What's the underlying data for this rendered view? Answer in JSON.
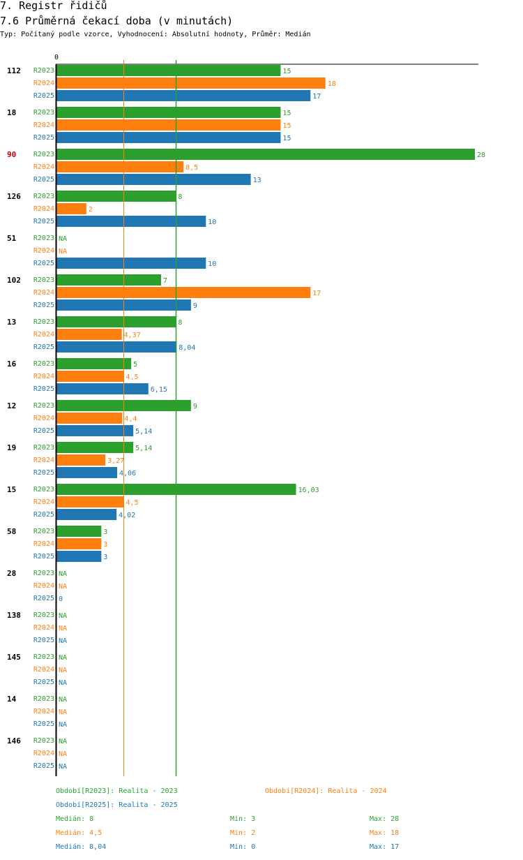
{
  "header": {
    "title": "7. Registr řidičů",
    "subtitle": "7.6 Průměrná čekací doba (v minutách)",
    "meta": "Typ: Počítaný podle vzorce, Vyhodnocení: Absolutní hodnoty, Průměr: Medián"
  },
  "colors": {
    "R2023": "#2ca02c",
    "R2024": "#ff7f0e",
    "R2025": "#1f77b4",
    "highlight": "#cc0000"
  },
  "chart_data": {
    "type": "bar",
    "orientation": "horizontal",
    "title": "7.6 Průměrná čekací doba (v minutách)",
    "xlim": [
      0,
      28
    ],
    "x_tick_labels": [
      "0"
    ],
    "series_names": [
      "R2023",
      "R2024",
      "R2025"
    ],
    "highlight_group": "90",
    "groups": [
      {
        "label": "112",
        "values": [
          15,
          18,
          17
        ],
        "texts": [
          "15",
          "18",
          "17"
        ]
      },
      {
        "label": "18",
        "values": [
          15,
          15,
          15
        ],
        "texts": [
          "15",
          "15",
          "15"
        ]
      },
      {
        "label": "90",
        "values": [
          28,
          8.5,
          13
        ],
        "texts": [
          "28",
          "8,5",
          "13"
        ]
      },
      {
        "label": "126",
        "values": [
          8,
          2,
          10
        ],
        "texts": [
          "8",
          "2",
          "10"
        ]
      },
      {
        "label": "51",
        "values": [
          null,
          null,
          10
        ],
        "texts": [
          "NA",
          "NA",
          "10"
        ]
      },
      {
        "label": "102",
        "values": [
          7,
          17,
          9
        ],
        "texts": [
          "7",
          "17",
          "9"
        ]
      },
      {
        "label": "13",
        "values": [
          8,
          4.37,
          8.04
        ],
        "texts": [
          "8",
          "4,37",
          "8,04"
        ]
      },
      {
        "label": "16",
        "values": [
          5,
          4.5,
          6.15
        ],
        "texts": [
          "5",
          "4,5",
          "6,15"
        ]
      },
      {
        "label": "12",
        "values": [
          9,
          4.4,
          5.14
        ],
        "texts": [
          "9",
          "4,4",
          "5,14"
        ]
      },
      {
        "label": "19",
        "values": [
          5.14,
          3.27,
          4.06
        ],
        "texts": [
          "5,14",
          "3,27",
          "4,06"
        ]
      },
      {
        "label": "15",
        "values": [
          16.03,
          4.5,
          4.02
        ],
        "texts": [
          "16,03",
          "4,5",
          "4,02"
        ]
      },
      {
        "label": "58",
        "values": [
          3,
          3,
          3
        ],
        "texts": [
          "3",
          "3",
          "3"
        ]
      },
      {
        "label": "28",
        "values": [
          null,
          null,
          0
        ],
        "texts": [
          "NA",
          "NA",
          "0"
        ]
      },
      {
        "label": "138",
        "values": [
          null,
          null,
          null
        ],
        "texts": [
          "NA",
          "NA",
          "NA"
        ]
      },
      {
        "label": "145",
        "values": [
          null,
          null,
          null
        ],
        "texts": [
          "NA",
          "NA",
          "NA"
        ]
      },
      {
        "label": "14",
        "values": [
          null,
          null,
          null
        ],
        "texts": [
          "NA",
          "NA",
          "NA"
        ]
      },
      {
        "label": "146",
        "values": [
          null,
          null,
          null
        ],
        "texts": [
          "NA",
          "NA",
          "NA"
        ]
      }
    ],
    "reference_lines": [
      {
        "series": "R2023",
        "value": 8
      },
      {
        "series": "R2024",
        "value": 4.5
      }
    ]
  },
  "legend": {
    "r2023": "Období[R2023]: Realita - 2023",
    "r2024": "Období[R2024]: Realita - 2024",
    "r2025": "Období[R2025]: Realita - 2025"
  },
  "stats": {
    "r2023": {
      "median": "Medián: 8",
      "min": "Min: 3",
      "max": "Max: 28"
    },
    "r2024": {
      "median": "Medián: 4,5",
      "min": "Min: 2",
      "max": "Max: 18"
    },
    "r2025": {
      "median": "Medián: 8,04",
      "min": "Min: 0",
      "max": "Max: 17"
    }
  }
}
